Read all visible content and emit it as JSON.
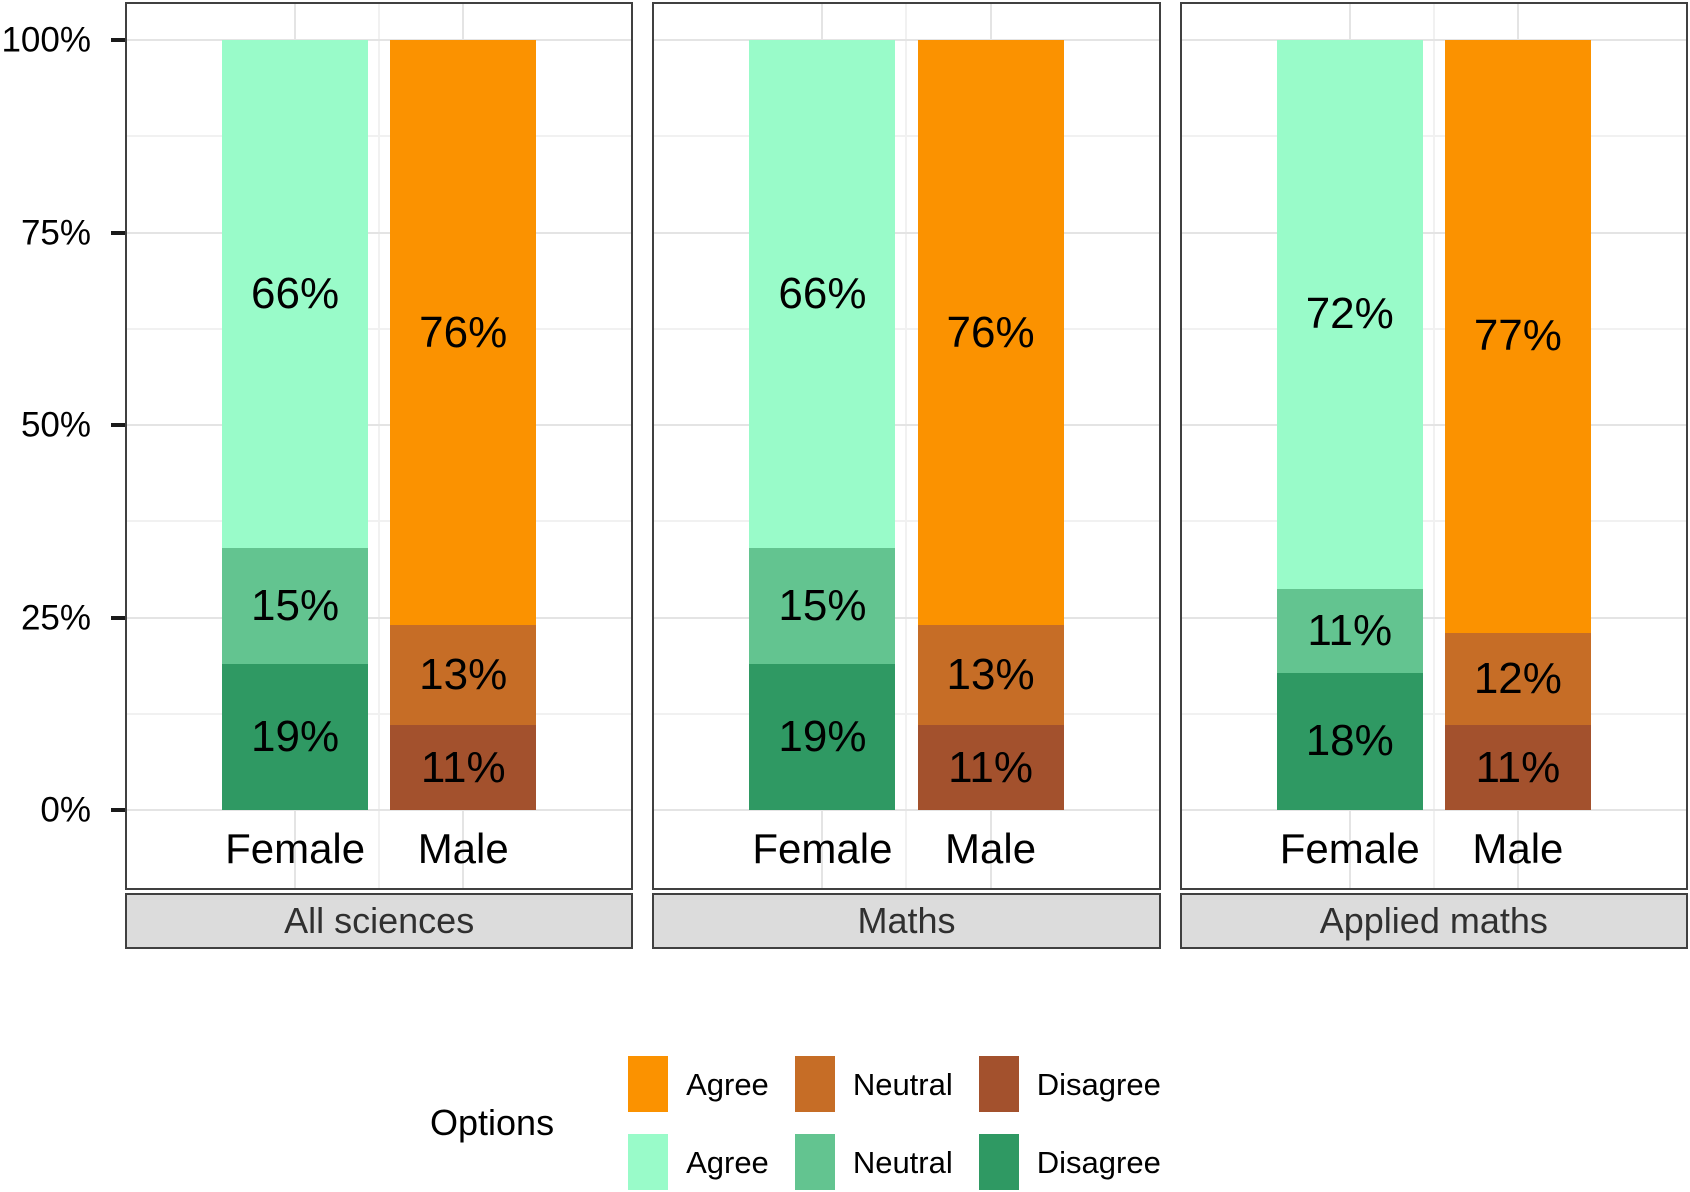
{
  "chart_data": {
    "type": "bar",
    "subtype": "stacked-percent-faceted",
    "x_categories": [
      "Female",
      "Male"
    ],
    "options": [
      "Agree",
      "Neutral",
      "Disagree"
    ],
    "facets": [
      {
        "label": "All sciences",
        "bars": [
          {
            "category": "Female",
            "palette": "female",
            "segments": [
              {
                "option": "Agree",
                "value": 66,
                "label": "66%"
              },
              {
                "option": "Neutral",
                "value": 15,
                "label": "15%"
              },
              {
                "option": "Disagree",
                "value": 19,
                "label": "19%"
              }
            ]
          },
          {
            "category": "Male",
            "palette": "male",
            "segments": [
              {
                "option": "Agree",
                "value": 76,
                "label": "76%"
              },
              {
                "option": "Neutral",
                "value": 13,
                "label": "13%"
              },
              {
                "option": "Disagree",
                "value": 11,
                "label": "11%"
              }
            ]
          }
        ]
      },
      {
        "label": "Maths",
        "bars": [
          {
            "category": "Female",
            "palette": "female",
            "segments": [
              {
                "option": "Agree",
                "value": 66,
                "label": "66%"
              },
              {
                "option": "Neutral",
                "value": 15,
                "label": "15%"
              },
              {
                "option": "Disagree",
                "value": 19,
                "label": "19%"
              }
            ]
          },
          {
            "category": "Male",
            "palette": "male",
            "segments": [
              {
                "option": "Agree",
                "value": 76,
                "label": "76%"
              },
              {
                "option": "Neutral",
                "value": 13,
                "label": "13%"
              },
              {
                "option": "Disagree",
                "value": 11,
                "label": "11%"
              }
            ]
          }
        ]
      },
      {
        "label": "Applied maths",
        "bars": [
          {
            "category": "Female",
            "palette": "female",
            "segments": [
              {
                "option": "Agree",
                "value": 72,
                "label": "72%"
              },
              {
                "option": "Neutral",
                "value": 11,
                "label": "11%"
              },
              {
                "option": "Disagree",
                "value": 18,
                "label": "18%"
              }
            ]
          },
          {
            "category": "Male",
            "palette": "male",
            "segments": [
              {
                "option": "Agree",
                "value": 77,
                "label": "77%"
              },
              {
                "option": "Neutral",
                "value": 12,
                "label": "12%"
              },
              {
                "option": "Disagree",
                "value": 11,
                "label": "11%"
              }
            ]
          }
        ]
      }
    ],
    "y_axis": {
      "range": [
        0,
        100
      ],
      "ticks": [
        {
          "label": "100%",
          "value": 100
        },
        {
          "label": "75%",
          "value": 75
        },
        {
          "label": "50%",
          "value": 50
        },
        {
          "label": "25%",
          "value": 25
        },
        {
          "label": "0%",
          "value": 0
        }
      ],
      "minor_ticks": [
        87.5,
        62.5,
        37.5,
        12.5
      ]
    },
    "legend": {
      "title": "Options",
      "rows": [
        {
          "palette": "male",
          "items": [
            {
              "option": "Agree",
              "label": "Agree"
            },
            {
              "option": "Neutral",
              "label": "Neutral"
            },
            {
              "option": "Disagree",
              "label": "Disagree"
            }
          ]
        },
        {
          "palette": "female",
          "items": [
            {
              "option": "Agree",
              "label": "Agree"
            },
            {
              "option": "Neutral",
              "label": "Neutral"
            },
            {
              "option": "Disagree",
              "label": "Disagree"
            }
          ]
        }
      ]
    },
    "palettes": {
      "male": {
        "Agree": "#FB9200",
        "Neutral": "#C66D26",
        "Disagree": "#A3512D"
      },
      "female": {
        "Agree": "#99FBC9",
        "Neutral": "#63C490",
        "Disagree": "#2F9963"
      }
    },
    "style": {
      "grid_major_color": "#E4E4E4",
      "grid_minor_color": "#F1F1F1",
      "panel_border_color": "#404040",
      "strip_background": "#DCDCDC",
      "tick_color": "#1a1a1a"
    },
    "layout_hints": {
      "legend_position": "bottom",
      "strip_position": "bottom",
      "grid": "on"
    }
  }
}
